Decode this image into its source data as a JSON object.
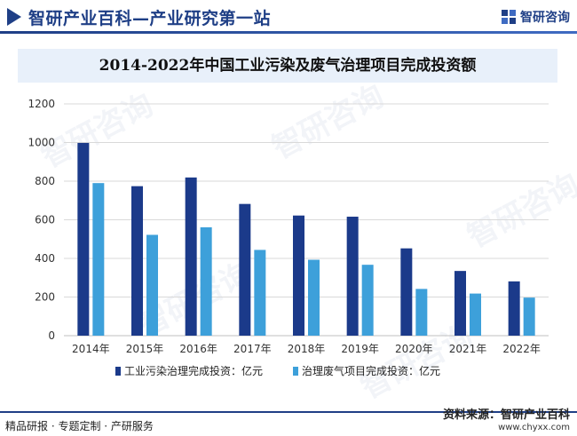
{
  "header": {
    "title": "智研产业百科—产业研究第一站",
    "logo_text": "智研咨询"
  },
  "footer": {
    "left_text": "精品研报 · 专题定制 · 产研服务",
    "source_text": "资料来源：智研产业百科",
    "url_text": "www.chyxx.com"
  },
  "watermark": {
    "text": "智研咨询"
  },
  "colors": {
    "primary": "#1f3f86",
    "series1": "#1b3a8a",
    "series2": "#3da0da",
    "banner": "#e8f0fa",
    "grid": "#d9d9d9"
  },
  "chart_data": {
    "type": "bar",
    "title": "2014-2022年中国工业污染及废气治理项目完成投资额",
    "categories": [
      "2014年",
      "2015年",
      "2016年",
      "2017年",
      "2018年",
      "2019年",
      "2020年",
      "2021年",
      "2022年"
    ],
    "series": [
      {
        "name": "工业污染治理完成投资：亿元",
        "values": [
          998,
          774,
          819,
          682,
          622,
          616,
          452,
          335,
          281
        ]
      },
      {
        "name": "治理废气项目完成投资：亿元",
        "values": [
          790,
          522,
          561,
          444,
          393,
          367,
          242,
          218,
          197
        ]
      }
    ],
    "yticks": [
      0,
      200,
      400,
      600,
      800,
      1000,
      1200
    ],
    "ylim": [
      0,
      1200
    ],
    "grid": true,
    "legend_position": "bottom"
  }
}
